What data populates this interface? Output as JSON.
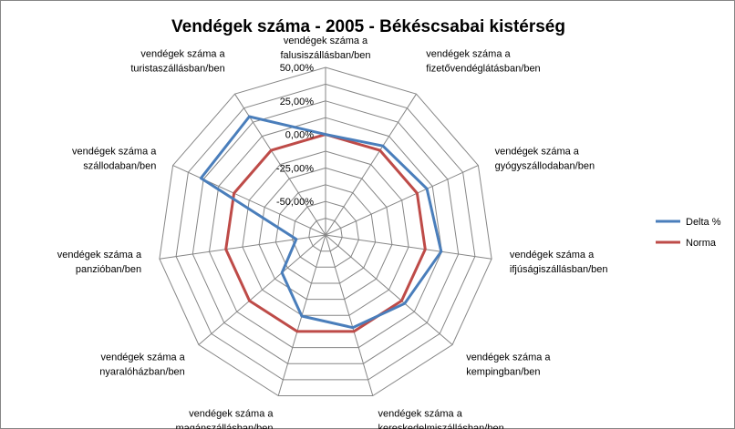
{
  "chart_data": {
    "type": "radar",
    "title": "Vendégek száma - 2005 - Békéscsabai kistérség",
    "categories": [
      [
        "vendégek száma a",
        "falusiszállásban/ben"
      ],
      [
        "vendégek száma a",
        "fizetővendéglátásban/ben"
      ],
      [
        "vendégek száma a",
        "gyógyszállodaban/ben"
      ],
      [
        "vendégek száma a",
        "ifjúságiszállásban/ben"
      ],
      [
        "vendégek száma a",
        "kempingban/ben"
      ],
      [
        "vendégek száma a",
        "kereskedelmiszállásban/ben"
      ],
      [
        "vendégek száma a",
        "magánszállásban/ben"
      ],
      [
        "vendégek száma a",
        "nyaralóházban/ben"
      ],
      [
        "vendégek száma a",
        "panzióban/ben"
      ],
      [
        "vendégek száma a",
        "szállodaban/ben"
      ],
      [
        "vendégek száma a",
        "turistaszállásban/ben"
      ]
    ],
    "axis": {
      "min": -75,
      "max": 50,
      "step": 12.5,
      "tick_labels": [
        "-50,00%",
        "-25,00%",
        "0,00%",
        "25,00%",
        "50,00%"
      ],
      "tick_values": [
        -50,
        -25,
        0,
        25,
        50
      ]
    },
    "series": [
      {
        "name": "Delta %",
        "color": "#4a7ebb",
        "values": [
          0,
          4,
          8,
          12,
          3,
          -3,
          -12,
          -32,
          -53,
          27,
          30
        ]
      },
      {
        "name": "Norma",
        "color": "#be4b48",
        "values": [
          0,
          0,
          0,
          0,
          0,
          0,
          0,
          0,
          0,
          0,
          0
        ]
      }
    ],
    "legend_position": "right",
    "grid": true
  }
}
